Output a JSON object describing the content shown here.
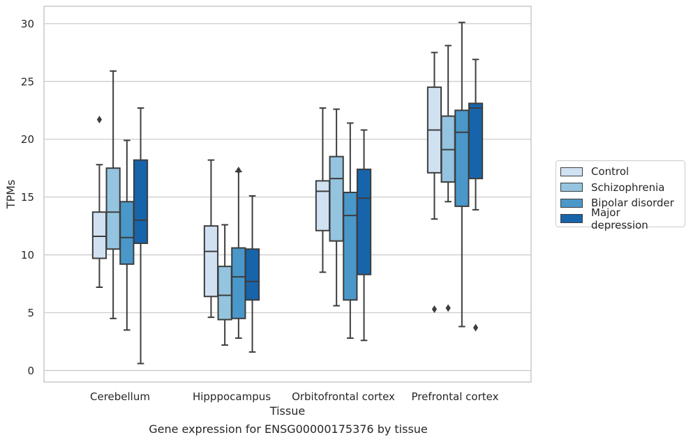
{
  "chart_data": {
    "type": "box",
    "xlabel": "Tissue",
    "ylabel": "TPMs",
    "caption": "Gene expression for ENSG00000175376 by tissue",
    "ylim": [
      -1,
      31.5
    ],
    "yticks": [
      0,
      5,
      10,
      15,
      20,
      25,
      30
    ],
    "grid": true,
    "legend_position": "right",
    "categories": [
      "Cerebellum",
      "Hipppocampus",
      "Orbitofrontal cortex",
      "Prefrontal cortex"
    ],
    "series": [
      {
        "name": "Control",
        "color": "#d0e1f2",
        "boxes": [
          {
            "whisker_low": 7.2,
            "q1": 9.7,
            "median": 11.6,
            "q3": 13.7,
            "whisker_high": 17.8,
            "outliers": [
              21.7
            ]
          },
          {
            "whisker_low": 4.6,
            "q1": 6.4,
            "median": 10.3,
            "q3": 12.5,
            "whisker_high": 18.2,
            "outliers": []
          },
          {
            "whisker_low": 8.5,
            "q1": 12.1,
            "median": 15.5,
            "q3": 16.4,
            "whisker_high": 22.7,
            "outliers": []
          },
          {
            "whisker_low": 13.1,
            "q1": 17.1,
            "median": 20.8,
            "q3": 24.5,
            "whisker_high": 27.5,
            "outliers": [
              5.3
            ]
          }
        ]
      },
      {
        "name": "Schizophrenia",
        "color": "#94c4df",
        "boxes": [
          {
            "whisker_low": 4.5,
            "q1": 10.5,
            "median": 13.7,
            "q3": 17.5,
            "whisker_high": 25.9,
            "outliers": []
          },
          {
            "whisker_low": 2.2,
            "q1": 4.4,
            "median": 6.5,
            "q3": 9.0,
            "whisker_high": 12.6,
            "outliers": []
          },
          {
            "whisker_low": 5.6,
            "q1": 11.2,
            "median": 16.6,
            "q3": 18.5,
            "whisker_high": 22.6,
            "outliers": []
          },
          {
            "whisker_low": 14.6,
            "q1": 16.3,
            "median": 19.1,
            "q3": 22.0,
            "whisker_high": 28.1,
            "outliers": [
              5.4
            ]
          }
        ]
      },
      {
        "name": "Bipolar disorder",
        "color": "#4a98c9",
        "boxes": [
          {
            "whisker_low": 3.5,
            "q1": 9.2,
            "median": 11.5,
            "q3": 14.6,
            "whisker_high": 19.9,
            "outliers": []
          },
          {
            "whisker_low": 2.8,
            "q1": 4.5,
            "median": 8.1,
            "q3": 10.6,
            "whisker_high": 17.2,
            "outliers": [
              17.3
            ]
          },
          {
            "whisker_low": 2.8,
            "q1": 6.1,
            "median": 13.4,
            "q3": 15.4,
            "whisker_high": 21.4,
            "outliers": []
          },
          {
            "whisker_low": 3.8,
            "q1": 14.2,
            "median": 20.6,
            "q3": 22.5,
            "whisker_high": 30.1,
            "outliers": []
          }
        ]
      },
      {
        "name": "Major depression",
        "color": "#1764ab",
        "boxes": [
          {
            "whisker_low": 0.6,
            "q1": 11.0,
            "median": 13.0,
            "q3": 18.2,
            "whisker_high": 22.7,
            "outliers": []
          },
          {
            "whisker_low": 1.6,
            "q1": 6.1,
            "median": 7.7,
            "q3": 10.5,
            "whisker_high": 15.1,
            "outliers": []
          },
          {
            "whisker_low": 2.6,
            "q1": 8.3,
            "median": 14.9,
            "q3": 17.4,
            "whisker_high": 20.8,
            "outliers": []
          },
          {
            "whisker_low": 13.9,
            "q1": 16.6,
            "median": 22.7,
            "q3": 23.1,
            "whisker_high": 26.9,
            "outliers": [
              3.7
            ]
          }
        ]
      }
    ]
  }
}
